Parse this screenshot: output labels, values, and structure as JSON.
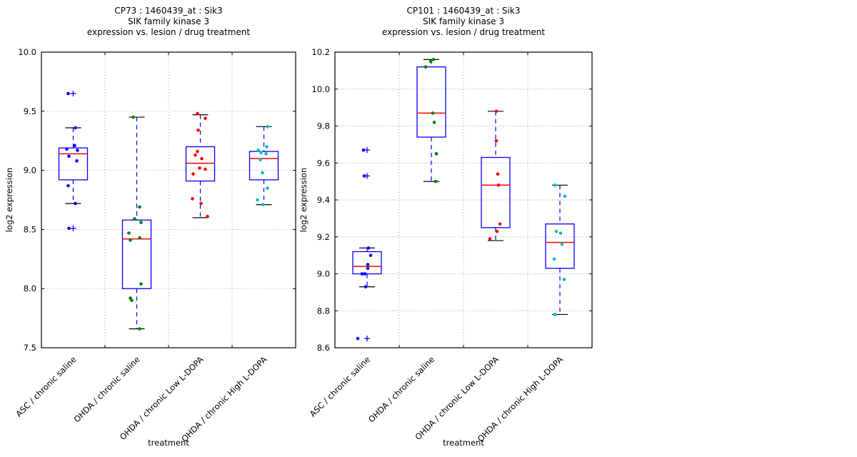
{
  "figure": {
    "background": "#ffffff",
    "box_edge_color": "#0000ff",
    "median_color": "#ff0000",
    "whisker_color": "#0000ff",
    "cap_color": "#000000",
    "flier_color": "#0000ff",
    "grid_color": "#9a9a9a"
  },
  "chart_data": [
    {
      "type": "boxplot",
      "title": "CP73 : 1460439_at : Sik3",
      "title_lines": [
        "CP73 : 1460439_at : Sik3",
        "SIK family kinase 3",
        "expression vs. lesion / drug treatment"
      ],
      "xlabel": "treatment",
      "ylabel": "log2 expression",
      "ylim": [
        7.5,
        10.0
      ],
      "yticks": [
        7.5,
        8.0,
        8.5,
        9.0,
        9.5,
        10.0
      ],
      "grid": true,
      "categories": [
        "ASC / chronic saline",
        "OHDA / chronic saline",
        "OHDA / chronic Low L-DOPA",
        "OHDA / chronic High L-DOPA"
      ],
      "series": [
        {
          "name": "ASC / chronic saline",
          "color": "#0000ff",
          "q1": 8.92,
          "median": 9.14,
          "q3": 9.19,
          "whisker_low": 8.72,
          "whisker_high": 9.36,
          "outliers": [
            9.65,
            8.51
          ],
          "points": [
            9.65,
            9.36,
            9.21,
            9.18,
            9.17,
            9.12,
            9.08,
            8.87,
            8.72,
            8.51
          ],
          "jitter": [
            -7,
            3,
            2,
            -9,
            6,
            -6,
            5,
            -7,
            3,
            -6
          ]
        },
        {
          "name": "OHDA / chronic saline",
          "color": "#008000",
          "q1": 8.0,
          "median": 8.42,
          "q3": 8.58,
          "whisker_low": 7.66,
          "whisker_high": 9.45,
          "outliers": [],
          "points": [
            9.45,
            8.69,
            8.59,
            8.56,
            8.47,
            8.43,
            8.41,
            8.04,
            7.92,
            7.9,
            7.66
          ],
          "jitter": [
            -5,
            4,
            -3,
            6,
            -11,
            4,
            -9,
            6,
            -9,
            -7,
            4
          ]
        },
        {
          "name": "OHDA / chronic Low L-DOPA",
          "color": "#ff0000",
          "q1": 8.91,
          "median": 9.06,
          "q3": 9.2,
          "whisker_low": 8.6,
          "whisker_high": 9.47,
          "outliers": [],
          "points": [
            9.48,
            9.44,
            9.34,
            9.16,
            9.13,
            9.1,
            9.02,
            9.01,
            8.97,
            8.76,
            8.72,
            8.61
          ],
          "jitter": [
            -4,
            7,
            -3,
            -4,
            -7,
            2,
            -1,
            7,
            -10,
            -11,
            1,
            10
          ]
        },
        {
          "name": "OHDA / chronic High L-DOPA",
          "color": "#00bfbf",
          "q1": 8.92,
          "median": 9.1,
          "q3": 9.16,
          "whisker_low": 8.71,
          "whisker_high": 9.37,
          "outliers": [],
          "points": [
            9.37,
            9.2,
            9.17,
            9.15,
            9.14,
            9.09,
            8.98,
            8.85,
            8.75,
            8.71
          ],
          "jitter": [
            5,
            4,
            -8,
            -4,
            3,
            -5,
            -2,
            5,
            -9,
            -1
          ]
        }
      ]
    },
    {
      "type": "boxplot",
      "title": "CP101 : 1460439_at : Sik3",
      "title_lines": [
        "CP101 : 1460439_at : Sik3",
        "SIK family kinase 3",
        "expression vs. lesion / drug treatment"
      ],
      "xlabel": "treatment",
      "ylabel": "log2 expression",
      "ylim": [
        8.6,
        10.2
      ],
      "yticks": [
        8.6,
        8.8,
        9.0,
        9.2,
        9.4,
        9.6,
        9.8,
        10.0,
        10.2
      ],
      "grid": true,
      "categories": [
        "ASC / chronic saline",
        "OHDA / chronic saline",
        "OHDA / chronic Low L-DOPA",
        "OHDA / chronic High L-DOPA"
      ],
      "series": [
        {
          "name": "ASC / chronic saline",
          "color": "#0000ff",
          "q1": 9.0,
          "median": 9.04,
          "q3": 9.12,
          "whisker_low": 8.93,
          "whisker_high": 9.14,
          "outliers": [
            9.67,
            9.53,
            8.65
          ],
          "points": [
            9.67,
            9.53,
            9.14,
            9.1,
            9.05,
            9.03,
            9.0,
            9.0,
            8.93,
            8.65
          ],
          "jitter": [
            -5,
            -4,
            2,
            5,
            1,
            1,
            -7,
            -3,
            -2,
            -13
          ]
        },
        {
          "name": "OHDA / chronic saline",
          "color": "#008000",
          "q1": 9.74,
          "median": 9.87,
          "q3": 10.12,
          "whisker_low": 9.5,
          "whisker_high": 10.16,
          "outliers": [],
          "points": [
            10.16,
            10.15,
            10.12,
            9.87,
            9.82,
            9.65,
            9.5
          ],
          "jitter": [
            3,
            -1,
            -8,
            2,
            4,
            7,
            6
          ]
        },
        {
          "name": "OHDA / chronic Low L-DOPA",
          "color": "#ff0000",
          "q1": 9.25,
          "median": 9.48,
          "q3": 9.63,
          "whisker_low": 9.18,
          "whisker_high": 9.88,
          "outliers": [],
          "points": [
            9.88,
            9.72,
            9.54,
            9.48,
            9.27,
            9.23,
            9.19
          ],
          "jitter": [
            1,
            1,
            3,
            4,
            6,
            2,
            -8
          ]
        },
        {
          "name": "OHDA / chronic High L-DOPA",
          "color": "#00bfbf",
          "q1": 9.03,
          "median": 9.17,
          "q3": 9.27,
          "whisker_low": 8.78,
          "whisker_high": 9.48,
          "outliers": [],
          "points": [
            9.48,
            9.42,
            9.23,
            9.22,
            9.16,
            9.08,
            8.97,
            8.78
          ],
          "jitter": [
            -7,
            7,
            -5,
            1,
            3,
            -8,
            6,
            -7
          ]
        }
      ]
    }
  ]
}
